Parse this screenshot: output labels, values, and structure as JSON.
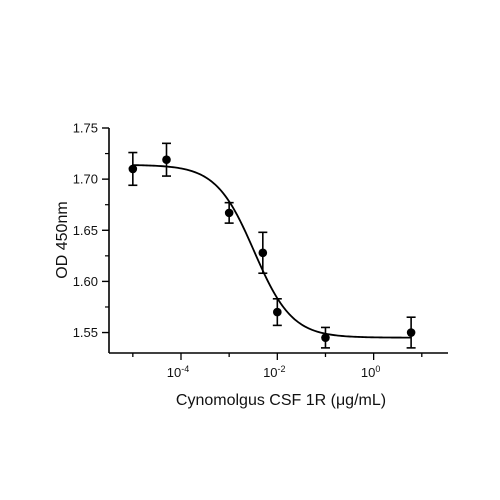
{
  "chart_data": {
    "type": "scatter",
    "title": "",
    "xlabel": "Cynomolgus CSF 1R (μg/mL)",
    "ylabel": "OD 450nm",
    "x_scale": "log10",
    "xlim": [
      3.2e-06,
      35
    ],
    "ylim": [
      1.53,
      1.75
    ],
    "y_ticks": [
      1.55,
      1.6,
      1.65,
      1.7,
      1.75
    ],
    "y_tick_labels": [
      "1.55",
      "1.60",
      "1.65",
      "1.70",
      "1.75"
    ],
    "x_major_tick_labels": [
      {
        "base": "10",
        "exp": "-4",
        "value": 0.0001
      },
      {
        "base": "10",
        "exp": "-2",
        "value": 0.01
      },
      {
        "base": "10",
        "exp": "0",
        "value": 1
      }
    ],
    "series": [
      {
        "points": [
          {
            "x": 1e-05,
            "y": 1.71,
            "err": 0.016
          },
          {
            "x": 5e-05,
            "y": 1.719,
            "err": 0.016
          },
          {
            "x": 0.001,
            "y": 1.667,
            "err": 0.01
          },
          {
            "x": 0.005,
            "y": 1.628,
            "err": 0.02
          },
          {
            "x": 0.01,
            "y": 1.57,
            "err": 0.013
          },
          {
            "x": 0.1,
            "y": 1.545,
            "err": 0.01
          },
          {
            "x": 6,
            "y": 1.55,
            "err": 0.015
          }
        ],
        "fit": {
          "model": "4PL",
          "top": 1.714,
          "bottom": 1.545,
          "ec50": 0.0033,
          "hill": 1.1
        }
      }
    ],
    "legend": "none",
    "grid": false,
    "colors": {
      "marker": "#000000",
      "line": "#000000"
    }
  }
}
